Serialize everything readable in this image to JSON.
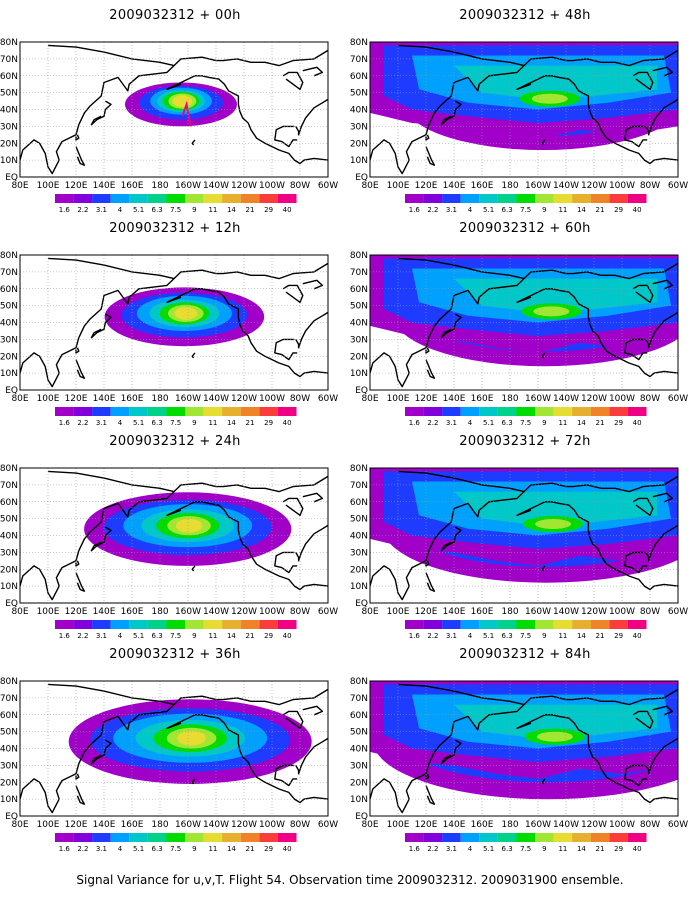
{
  "figure": {
    "caption": "Signal Variance for u,v,T. Flight 54. Observation time 2009032312. 2009031900 ensemble.",
    "panels": [
      {
        "title": "2009032312 + 00h",
        "forecast_hour": 0,
        "spread": 0.0,
        "intensity": 1.0
      },
      {
        "title": "2009032312 + 12h",
        "forecast_hour": 12,
        "spread": 0.2,
        "intensity": 0.95
      },
      {
        "title": "2009032312 + 24h",
        "forecast_hour": 24,
        "spread": 0.4,
        "intensity": 0.9
      },
      {
        "title": "2009032312 + 36h",
        "forecast_hour": 36,
        "spread": 0.55,
        "intensity": 0.85
      },
      {
        "title": "2009032312 + 48h",
        "forecast_hour": 48,
        "spread": 0.7,
        "intensity": 0.8
      },
      {
        "title": "2009032312 + 60h",
        "forecast_hour": 60,
        "spread": 0.8,
        "intensity": 0.78
      },
      {
        "title": "2009032312 + 72h",
        "forecast_hour": 72,
        "spread": 0.9,
        "intensity": 0.76
      },
      {
        "title": "2009032312 + 84h",
        "forecast_hour": 84,
        "spread": 1.0,
        "intensity": 0.74
      }
    ]
  },
  "map": {
    "lat_labels": [
      "80N",
      "70N",
      "60N",
      "50N",
      "40N",
      "30N",
      "20N",
      "10N",
      "EQ"
    ],
    "lon_labels": [
      "80E",
      "100E",
      "120E",
      "140E",
      "160E",
      "180",
      "160W",
      "140W",
      "120W",
      "100W",
      "80W",
      "60W"
    ]
  },
  "legend": {
    "levels": [
      "1.6",
      "2.2",
      "3.1",
      "4",
      "5.1",
      "6.3",
      "7.5",
      "9",
      "11",
      "14",
      "21",
      "29",
      "40"
    ],
    "colors": [
      "#a000c8",
      "#8200dc",
      "#1e3cff",
      "#00a0ff",
      "#00c8c8",
      "#00d28c",
      "#00dc00",
      "#a0e632",
      "#e6dc32",
      "#e6af2d",
      "#f08228",
      "#fa3c3c",
      "#f00082"
    ]
  }
}
